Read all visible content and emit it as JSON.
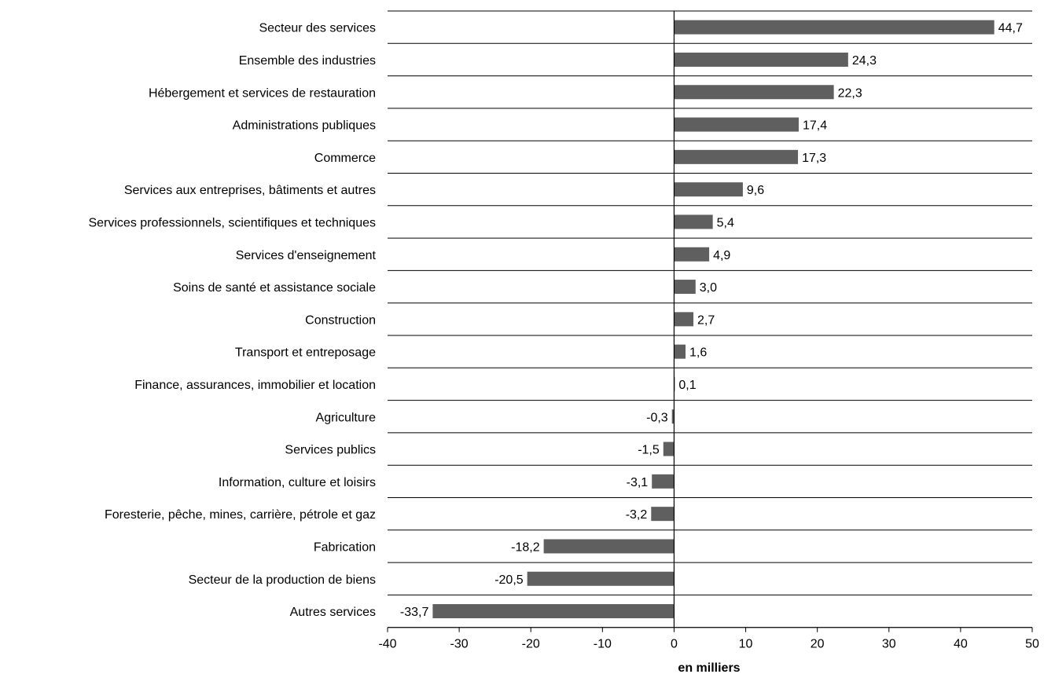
{
  "chart_data": {
    "type": "bar",
    "orientation": "horizontal",
    "title": "",
    "xlabel": "en milliers",
    "ylabel": "",
    "xlim": [
      -40,
      50
    ],
    "xticks": [
      -40,
      -30,
      -20,
      -10,
      0,
      10,
      20,
      30,
      40,
      50
    ],
    "xtick_labels": [
      "-40",
      "-30",
      "-20",
      "-10",
      "0",
      "10",
      "20",
      "30",
      "40",
      "50"
    ],
    "grid": "horizontal lines between categories",
    "bar_color": "#5f5f5f",
    "categories": [
      "Secteur des services",
      "Ensemble des industries",
      "Hébergement et services de restauration",
      "Administrations publiques",
      "Commerce",
      "Services aux entreprises, bâtiments et autres",
      "Services professionnels, scientifiques et techniques",
      "Services d'enseignement",
      "Soins de santé et assistance sociale",
      "Construction",
      "Transport et entreposage",
      "Finance, assurances, immobilier et location",
      "Agriculture",
      "Services publics",
      "Information, culture et loisirs",
      "Foresterie, pêche, mines, carrière, pétrole et gaz",
      "Fabrication",
      "Secteur de la production de biens",
      "Autres services"
    ],
    "values": [
      44.7,
      24.3,
      22.3,
      17.4,
      17.3,
      9.6,
      5.4,
      4.9,
      3.0,
      2.7,
      1.6,
      0.1,
      -0.3,
      -1.5,
      -3.1,
      -3.2,
      -18.2,
      -20.5,
      -33.7
    ],
    "value_labels": [
      "44,7",
      "24,3",
      "22,3",
      "17,4",
      "17,3",
      "9,6",
      "5,4",
      "4,9",
      "3,0",
      "2,7",
      "1,6",
      "0,1",
      "-0,3",
      "-1,5",
      "-3,1",
      "-3,2",
      "-18,2",
      "-20,5",
      "-33,7"
    ]
  }
}
